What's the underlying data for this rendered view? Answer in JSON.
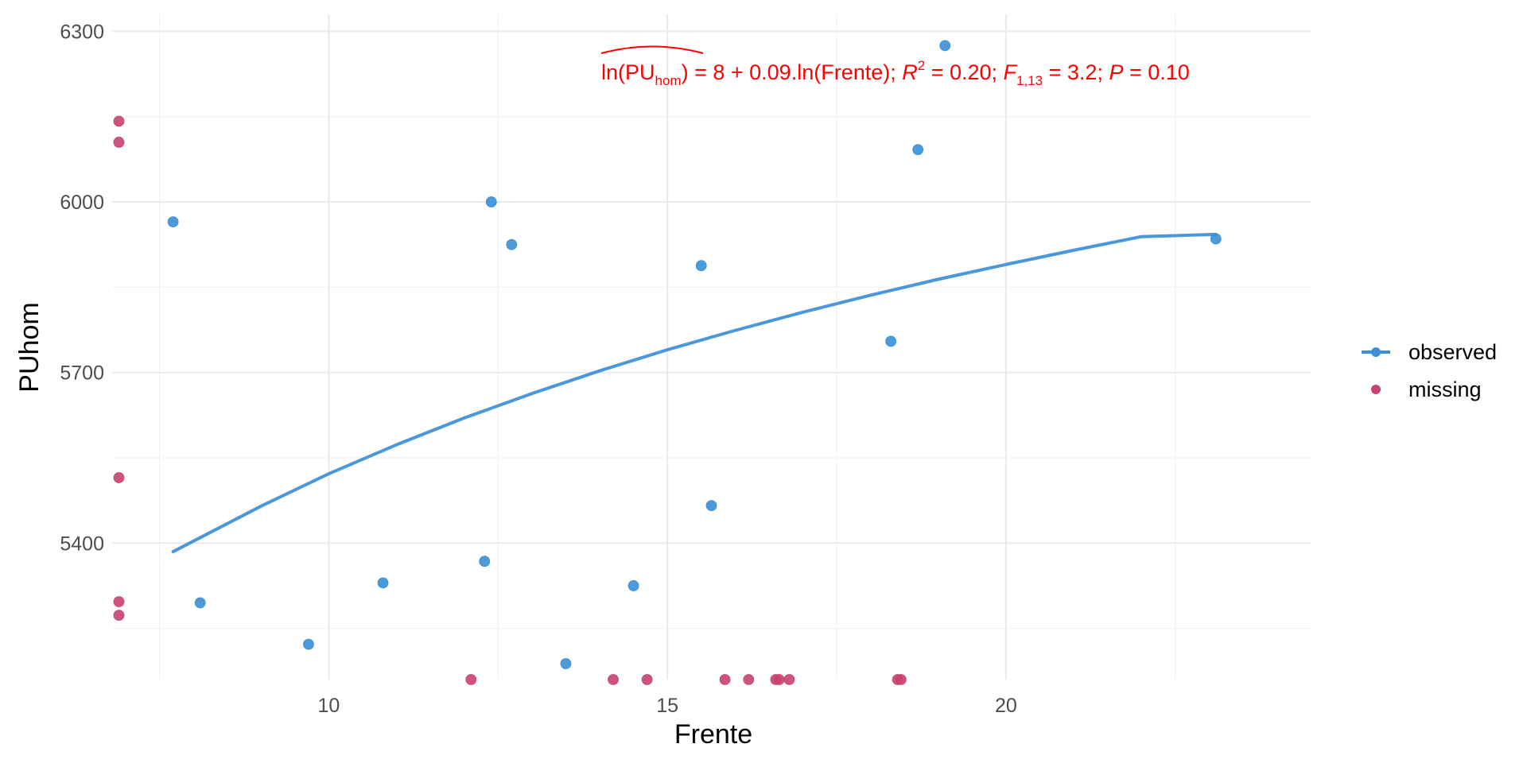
{
  "chart_data": {
    "type": "scatter",
    "xlabel": "Frente",
    "ylabel": "PUhom",
    "xlim": [
      6.8,
      24.5
    ],
    "ylim": [
      5160,
      6330
    ],
    "x_ticks": [
      10,
      15,
      20
    ],
    "x_tick_labels": [
      "10",
      "15",
      "20"
    ],
    "y_ticks": [
      5400,
      5700,
      6000,
      6300
    ],
    "y_tick_labels": [
      "5400",
      "5700",
      "6000",
      "6300"
    ],
    "x_minor": [
      7.5,
      12.5,
      17.5,
      22.5
    ],
    "y_minor": [
      5250,
      5550,
      5850,
      6150
    ],
    "grid": true,
    "legend_position": "right",
    "colors": {
      "observed": "#3A8FD6",
      "missing": "#C8426E",
      "fit": "#4A97DA",
      "equation": "#ff0000"
    },
    "series": [
      {
        "name": "observed",
        "points": [
          {
            "x": 7.7,
            "y": 5965
          },
          {
            "x": 8.1,
            "y": 5295
          },
          {
            "x": 9.7,
            "y": 5222
          },
          {
            "x": 10.8,
            "y": 5330
          },
          {
            "x": 12.3,
            "y": 5368
          },
          {
            "x": 12.4,
            "y": 6000
          },
          {
            "x": 12.7,
            "y": 5925
          },
          {
            "x": 13.5,
            "y": 5188
          },
          {
            "x": 14.5,
            "y": 5325
          },
          {
            "x": 15.5,
            "y": 5888
          },
          {
            "x": 15.65,
            "y": 5466
          },
          {
            "x": 18.3,
            "y": 5755
          },
          {
            "x": 18.7,
            "y": 6092
          },
          {
            "x": 19.1,
            "y": 6275
          },
          {
            "x": 23.1,
            "y": 5935
          }
        ]
      },
      {
        "name": "missing",
        "points": [
          {
            "x": 6.9,
            "y": 6142
          },
          {
            "x": 6.9,
            "y": 6105
          },
          {
            "x": 6.9,
            "y": 5515
          },
          {
            "x": 6.9,
            "y": 5297
          },
          {
            "x": 6.9,
            "y": 5273
          },
          {
            "x": 12.1,
            "y": 5160
          },
          {
            "x": 14.2,
            "y": 5160
          },
          {
            "x": 14.7,
            "y": 5160
          },
          {
            "x": 15.85,
            "y": 5160
          },
          {
            "x": 16.2,
            "y": 5160
          },
          {
            "x": 16.6,
            "y": 5160
          },
          {
            "x": 16.65,
            "y": 5160
          },
          {
            "x": 16.8,
            "y": 5160
          },
          {
            "x": 18.4,
            "y": 5160
          },
          {
            "x": 18.45,
            "y": 5160
          }
        ]
      }
    ],
    "fit_line": {
      "x": [
        7.7,
        9,
        10,
        11,
        12,
        13,
        14,
        15,
        16,
        17,
        18,
        19,
        20,
        21,
        22,
        23.1
      ],
      "y": [
        5385,
        5465,
        5522,
        5573,
        5620,
        5663,
        5703,
        5740,
        5774,
        5806,
        5836,
        5864,
        5890,
        5915,
        5939,
        5943
      ]
    },
    "annotation": {
      "parts": {
        "ln_open": "ln(PU",
        "ln_sub": "hom",
        "ln_close": ")",
        "eq_mid": " = 8 + 0.09.ln(Frente); ",
        "r": "R",
        "r_sup": "2",
        "r_val": " = 0.20; ",
        "f": "F",
        "f_sub": "1,13",
        "f_val": " = 3.2; ",
        "p": "P",
        "p_val": " = 0.10"
      }
    }
  }
}
